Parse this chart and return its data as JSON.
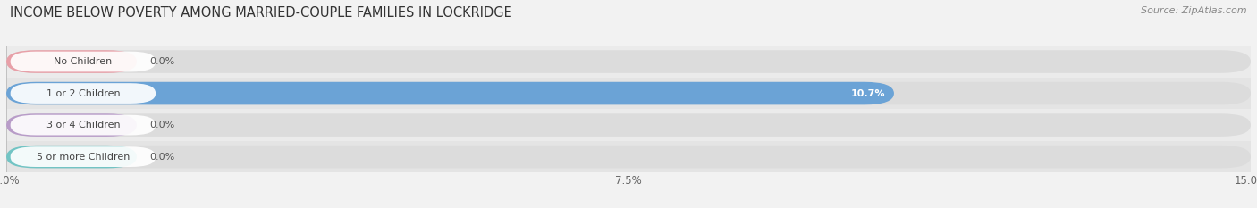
{
  "title": "INCOME BELOW POVERTY AMONG MARRIED-COUPLE FAMILIES IN LOCKRIDGE",
  "source": "Source: ZipAtlas.com",
  "categories": [
    "No Children",
    "1 or 2 Children",
    "3 or 4 Children",
    "5 or more Children"
  ],
  "values": [
    0.0,
    10.7,
    0.0,
    0.0
  ],
  "bar_colors": [
    "#e8a0a8",
    "#6ba3d6",
    "#b89cc8",
    "#72c4c4"
  ],
  "xlim": [
    0,
    15.0
  ],
  "xticks": [
    0.0,
    7.5,
    15.0
  ],
  "xticklabels": [
    "0.0%",
    "7.5%",
    "15.0%"
  ],
  "background_color": "#f2f2f2",
  "bar_bg_color": "#e2e2e2",
  "row_bg_colors": [
    "#ebebeb",
    "#e4e4e4",
    "#ebebeb",
    "#e4e4e4"
  ],
  "title_fontsize": 10.5,
  "source_fontsize": 8,
  "tick_fontsize": 8.5,
  "label_fontsize": 8,
  "value_fontsize": 8,
  "fig_width": 14.06,
  "fig_height": 2.33
}
